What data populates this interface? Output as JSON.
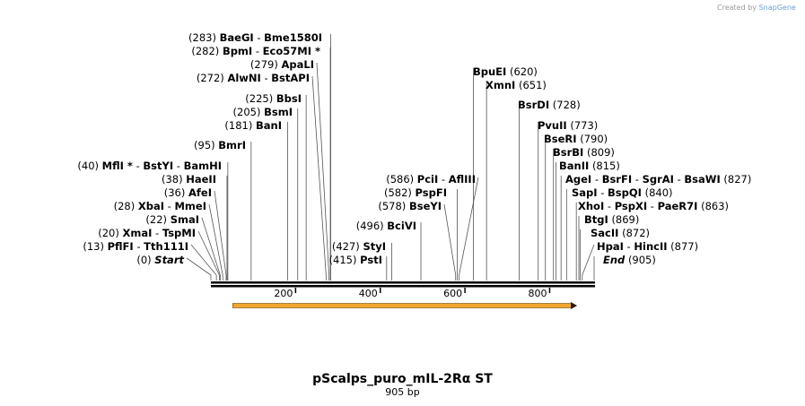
{
  "watermark": {
    "prefix": "Created by",
    "brand": "SnapGene"
  },
  "map": {
    "title": "pScalps_puro_mIL-2Rα ST",
    "length_label": "905 bp",
    "length": 905,
    "ruler_ticks": [
      200,
      400,
      600,
      800
    ],
    "feature": {
      "name": "ORF arrow",
      "start": 60,
      "end": 850,
      "color": "#f2a830",
      "edge_color": "#6b4a10",
      "direction": "forward"
    },
    "sites": [
      {
        "id": "start",
        "names": [
          "Start"
        ],
        "pos": 0,
        "pos_label": "(0)",
        "italic": true
      },
      {
        "id": "pflfi",
        "names": [
          "PflFI",
          "Tth111I"
        ],
        "pos": 13,
        "pos_label": "(13)"
      },
      {
        "id": "xmai",
        "names": [
          "XmaI",
          "TspMI"
        ],
        "pos": 20,
        "pos_label": "(20)"
      },
      {
        "id": "smai",
        "names": [
          "SmaI"
        ],
        "pos": 22,
        "pos_label": "(22)"
      },
      {
        "id": "xbai",
        "names": [
          "XbaI",
          "MmeI"
        ],
        "pos": 28,
        "pos_label": "(28)"
      },
      {
        "id": "afei",
        "names": [
          "AfeI"
        ],
        "pos": 36,
        "pos_label": "(36)"
      },
      {
        "id": "haeii",
        "names": [
          "HaeII"
        ],
        "pos": 38,
        "pos_label": "(38)"
      },
      {
        "id": "mfli",
        "names": [
          "MflI *",
          "BstYI",
          "BamHI"
        ],
        "pos": 40,
        "pos_label": "(40)"
      },
      {
        "id": "bmri",
        "names": [
          "BmrI"
        ],
        "pos": 95,
        "pos_label": "(95)"
      },
      {
        "id": "bani",
        "names": [
          "BanI"
        ],
        "pos": 181,
        "pos_label": "(181)"
      },
      {
        "id": "bsmi",
        "names": [
          "BsmI"
        ],
        "pos": 205,
        "pos_label": "(205)"
      },
      {
        "id": "bbsi",
        "names": [
          "BbsI"
        ],
        "pos": 225,
        "pos_label": "(225)"
      },
      {
        "id": "alwni",
        "names": [
          "AlwNI",
          "BstAPI"
        ],
        "pos": 272,
        "pos_label": "(272)"
      },
      {
        "id": "apali",
        "names": [
          "ApaLI"
        ],
        "pos": 279,
        "pos_label": "(279)"
      },
      {
        "id": "bpmi",
        "names": [
          "BpmI",
          "Eco57MI *"
        ],
        "pos": 282,
        "pos_label": "(282)"
      },
      {
        "id": "baegi",
        "names": [
          "BaeGI",
          "Bme1580I"
        ],
        "pos": 283,
        "pos_label": "(283)"
      },
      {
        "id": "psti",
        "names": [
          "PstI"
        ],
        "pos": 415,
        "pos_label": "(415)"
      },
      {
        "id": "styi",
        "names": [
          "StyI"
        ],
        "pos": 427,
        "pos_label": "(427)"
      },
      {
        "id": "bcivi",
        "names": [
          "BciVI"
        ],
        "pos": 496,
        "pos_label": "(496)"
      },
      {
        "id": "bseyi",
        "names": [
          "BseYI"
        ],
        "pos": 578,
        "pos_label": "(578)"
      },
      {
        "id": "pspfi",
        "names": [
          "PspFI"
        ],
        "pos": 582,
        "pos_label": "(582)"
      },
      {
        "id": "pcii",
        "names": [
          "PciI",
          "AflIII"
        ],
        "pos": 586,
        "pos_label": "(586)"
      },
      {
        "id": "bpuei",
        "names": [
          "BpuEI"
        ],
        "pos": 620,
        "pos_label": "(620)"
      },
      {
        "id": "xmni",
        "names": [
          "XmnI"
        ],
        "pos": 651,
        "pos_label": "(651)"
      },
      {
        "id": "bsrdi",
        "names": [
          "BsrDI"
        ],
        "pos": 728,
        "pos_label": "(728)"
      },
      {
        "id": "pvuii",
        "names": [
          "PvuII"
        ],
        "pos": 773,
        "pos_label": "(773)"
      },
      {
        "id": "bseri",
        "names": [
          "BseRI"
        ],
        "pos": 790,
        "pos_label": "(790)"
      },
      {
        "id": "bsrbi",
        "names": [
          "BsrBI"
        ],
        "pos": 809,
        "pos_label": "(809)"
      },
      {
        "id": "banii",
        "names": [
          "BanII"
        ],
        "pos": 815,
        "pos_label": "(815)"
      },
      {
        "id": "agei",
        "names": [
          "AgeI",
          "BsrFI",
          "SgrAI",
          "BsaWI"
        ],
        "pos": 827,
        "pos_label": "(827)"
      },
      {
        "id": "sapi",
        "names": [
          "SapI",
          "BspQI"
        ],
        "pos": 840,
        "pos_label": "(840)"
      },
      {
        "id": "xhoi",
        "names": [
          "XhoI",
          "PspXI",
          "PaeR7I"
        ],
        "pos": 863,
        "pos_label": "(863)"
      },
      {
        "id": "btgi",
        "names": [
          "BtgI"
        ],
        "pos": 869,
        "pos_label": "(869)"
      },
      {
        "id": "sacii",
        "names": [
          "SacII"
        ],
        "pos": 872,
        "pos_label": "(872)"
      },
      {
        "id": "hpai",
        "names": [
          "HpaI",
          "HincII"
        ],
        "pos": 877,
        "pos_label": "(877)"
      },
      {
        "id": "end",
        "names": [
          "End"
        ],
        "pos": 905,
        "pos_label": "(905)",
        "italic": true
      }
    ]
  }
}
